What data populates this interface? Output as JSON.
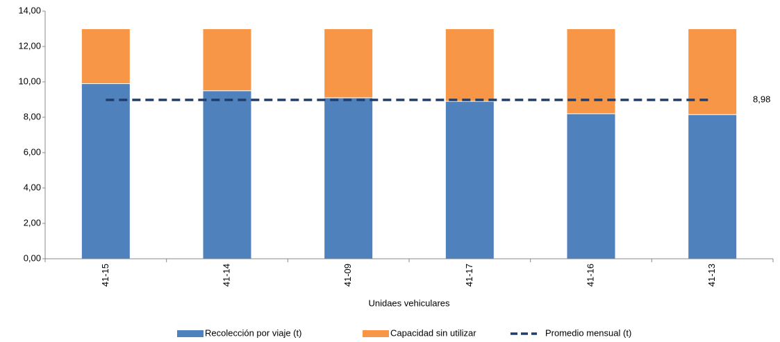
{
  "chart_data": {
    "type": "stacked-bar-line",
    "x_label": "Unidaes vehiculares",
    "categories": [
      "41-15",
      "41-14",
      "41-09",
      "41-17",
      "41-16",
      "41-13"
    ],
    "series": [
      {
        "name": "Recolección por viaje (t)",
        "type": "bar",
        "color": "#4f81bd",
        "values": [
          9.9,
          9.5,
          9.1,
          8.9,
          8.2,
          8.15
        ]
      },
      {
        "name": "Capacidad sin utilizar",
        "type": "bar",
        "color": "#f79646",
        "values": [
          3.1,
          3.5,
          3.9,
          4.1,
          4.8,
          4.85
        ]
      },
      {
        "name": "Promedio mensual (t)",
        "type": "line",
        "color": "#1f3d6b",
        "dashed": true,
        "values": [
          8.98,
          8.98,
          8.98,
          8.98,
          8.98,
          8.98
        ],
        "end_label": {
          "value": 8.98,
          "label": "8,98"
        }
      }
    ],
    "ylim": [
      0,
      14
    ],
    "yticks": [
      {
        "value": 0,
        "label": "0,00"
      },
      {
        "value": 2,
        "label": "2,00"
      },
      {
        "value": 4,
        "label": "4,00"
      },
      {
        "value": 6,
        "label": "6,00"
      },
      {
        "value": 8,
        "label": "8,00"
      },
      {
        "value": 10,
        "label": "10,00"
      },
      {
        "value": 12,
        "label": "12,00"
      },
      {
        "value": 14,
        "label": "14,00"
      }
    ],
    "legend": "bottom"
  }
}
